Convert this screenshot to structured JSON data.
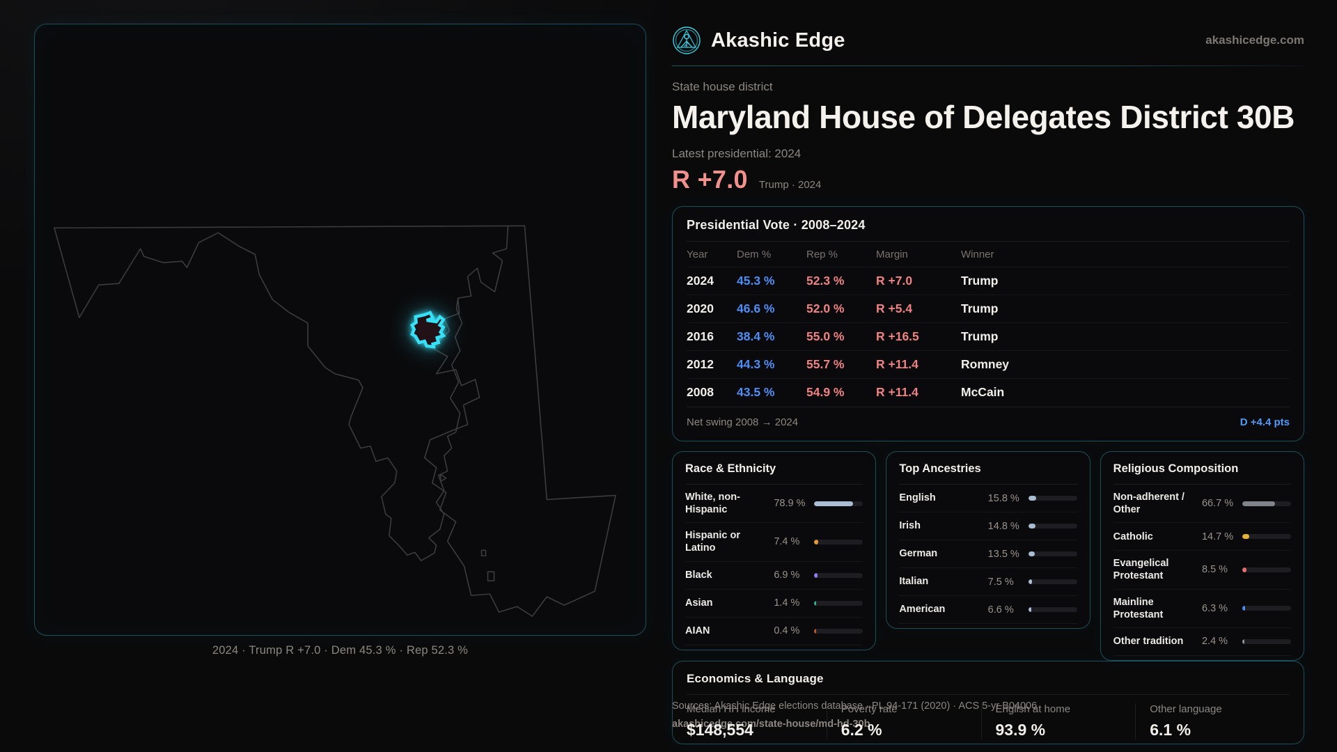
{
  "brand": {
    "name": "Akashic Edge",
    "domain": "akashicedge.com"
  },
  "header": {
    "eyebrow": "State house district",
    "title": "Maryland House of Delegates District 30B",
    "latest_label": "Latest presidential: 2024",
    "margin_value": "R +7.0",
    "margin_caption": "Trump · 2024"
  },
  "map": {
    "caption": "2024 · Trump R +7.0 · Dem 45.3 % · Rep 52.3 %"
  },
  "presidential": {
    "title": "Presidential Vote · 2008–2024",
    "columns": [
      "Year",
      "Dem %",
      "Rep %",
      "Margin",
      "Winner"
    ],
    "rows": [
      {
        "year": "2024",
        "dem": "45.3 %",
        "rep": "52.3 %",
        "margin": "R +7.0",
        "winner": "Trump"
      },
      {
        "year": "2020",
        "dem": "46.6 %",
        "rep": "52.0 %",
        "margin": "R +5.4",
        "winner": "Trump"
      },
      {
        "year": "2016",
        "dem": "38.4 %",
        "rep": "55.0 %",
        "margin": "R +16.5",
        "winner": "Trump"
      },
      {
        "year": "2012",
        "dem": "44.3 %",
        "rep": "55.7 %",
        "margin": "R +11.4",
        "winner": "Romney"
      },
      {
        "year": "2008",
        "dem": "43.5 %",
        "rep": "54.9 %",
        "margin": "R +11.4",
        "winner": "McCain"
      }
    ],
    "net_swing_label": "Net swing 2008 → 2024",
    "net_swing_value": "D +4.4 pts"
  },
  "demographics": [
    {
      "title": "Race & Ethnicity",
      "rows": [
        {
          "label": "White, non-Hispanic",
          "value": "78.9 %",
          "pct": 78.9,
          "color": "#a9bdd3"
        },
        {
          "label": "Hispanic or Latino",
          "value": "7.4 %",
          "pct": 7.4,
          "color": "#e59a3a"
        },
        {
          "label": "Black",
          "value": "6.9 %",
          "pct": 6.9,
          "color": "#8b7cf0"
        },
        {
          "label": "Asian",
          "value": "1.4 %",
          "pct": 1.4,
          "color": "#2fae8f"
        },
        {
          "label": "AIAN",
          "value": "0.4 %",
          "pct": 0.4,
          "color": "#b65c2e"
        }
      ]
    },
    {
      "title": "Top Ancestries",
      "rows": [
        {
          "label": "English",
          "value": "15.8 %",
          "pct": 15.8,
          "color": "#a9bdd3"
        },
        {
          "label": "Irish",
          "value": "14.8 %",
          "pct": 14.8,
          "color": "#a9bdd3"
        },
        {
          "label": "German",
          "value": "13.5 %",
          "pct": 13.5,
          "color": "#a9bdd3"
        },
        {
          "label": "Italian",
          "value": "7.5 %",
          "pct": 7.5,
          "color": "#a9bdd3"
        },
        {
          "label": "American",
          "value": "6.6 %",
          "pct": 6.6,
          "color": "#a9bdd3"
        }
      ]
    },
    {
      "title": "Religious Composition",
      "rows": [
        {
          "label": "Non-adherent / Other",
          "value": "66.7 %",
          "pct": 66.7,
          "color": "#7e838c"
        },
        {
          "label": "Catholic",
          "value": "14.7 %",
          "pct": 14.7,
          "color": "#e3b13c"
        },
        {
          "label": "Evangelical Protestant",
          "value": "8.5 %",
          "pct": 8.5,
          "color": "#e66e6e"
        },
        {
          "label": "Mainline Protestant",
          "value": "6.3 %",
          "pct": 6.3,
          "color": "#4c8df5"
        },
        {
          "label": "Other tradition",
          "value": "2.4 %",
          "pct": 2.4,
          "color": "#8f959d"
        }
      ]
    }
  ],
  "economics": {
    "title": "Economics & Language",
    "stats": [
      {
        "label": "Median HH income",
        "value": "$148,554"
      },
      {
        "label": "Poverty rate",
        "value": "6.2 %"
      },
      {
        "label": "English at home",
        "value": "93.9 %"
      },
      {
        "label": "Other language",
        "value": "6.1 %"
      }
    ]
  },
  "footer": {
    "sources": "Sources: Akashic Edge elections database · PL 94-171 (2020) · ACS 5-yr B04006",
    "permalink": "akashicedge.com/state-house/md-hd-30b"
  },
  "colors": {
    "accent_cyan": "#35d0e8",
    "dem_blue": "#4f8ef5",
    "rep_red": "#ef8383",
    "panel_border": "#1d4f5b",
    "muted_text": "#8d8781"
  }
}
